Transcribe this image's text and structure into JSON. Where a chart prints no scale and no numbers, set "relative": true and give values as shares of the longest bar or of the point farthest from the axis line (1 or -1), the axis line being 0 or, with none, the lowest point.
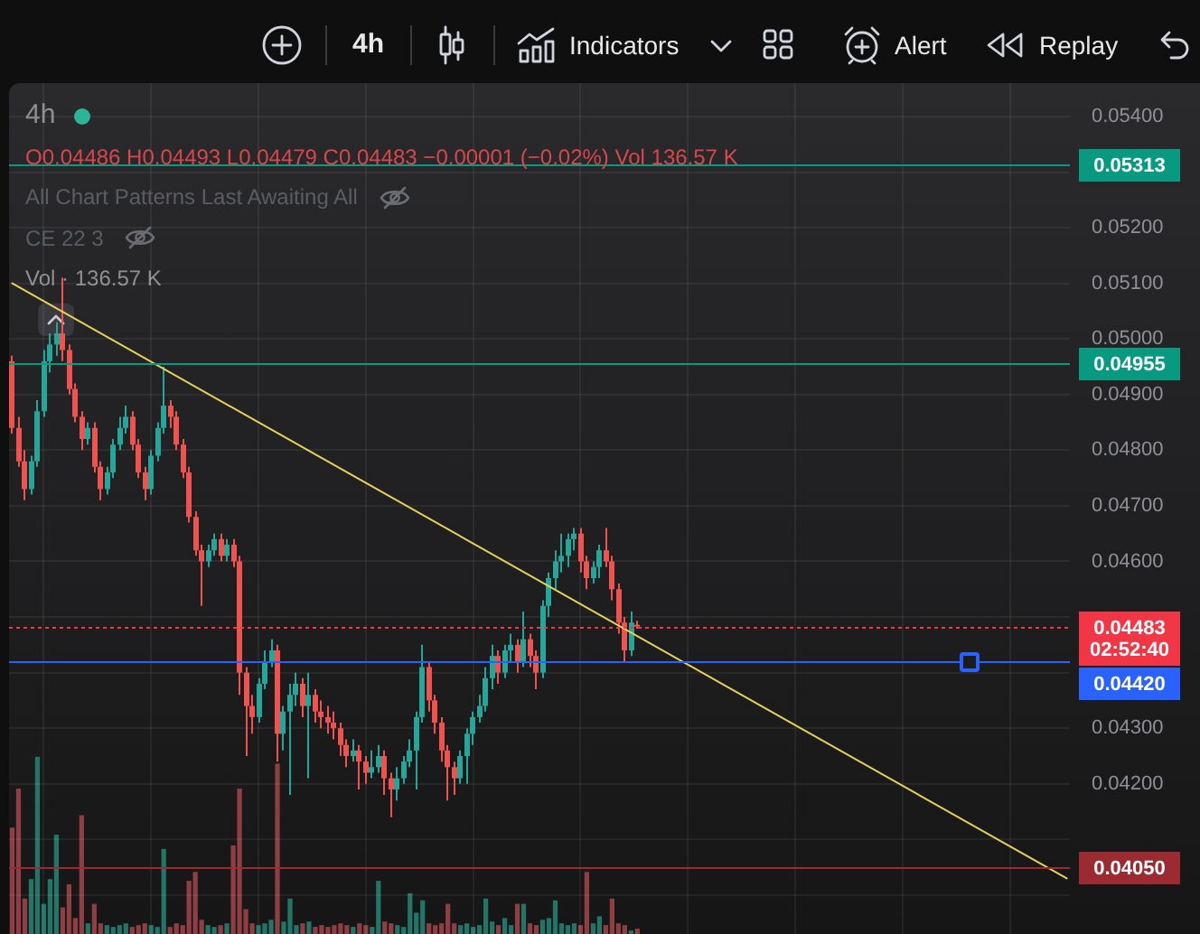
{
  "chart_data": [
    {
      "type": "other",
      "annotations": [
        "4h",
        "Indicators",
        "Alert",
        "Replay"
      ]
    },
    {
      "type": "candlestick",
      "title": "4h",
      "subtitle": "O0.04486 H0.04493 L0.04479 C0.04483 −0.00001 (−0.02%) Vol 136.57 K",
      "annotations": [
        "All Chart Patterns Last Awaiting All",
        "CE 22 3"
      ],
      "categories": [
        null,
        null,
        null,
        null,
        null,
        null,
        null,
        null,
        null,
        null,
        null,
        null,
        null,
        null,
        null,
        null,
        null,
        null,
        null,
        null,
        null,
        null,
        null,
        null,
        null,
        null,
        null,
        null,
        null,
        null,
        null,
        null,
        null,
        null,
        null,
        null,
        null,
        null,
        null,
        null,
        null,
        null,
        null,
        null,
        null,
        null,
        null,
        null,
        null,
        null,
        null,
        null,
        null,
        null,
        null,
        null,
        null,
        null,
        null,
        null,
        null,
        null,
        null,
        null,
        null,
        null,
        null,
        null,
        null,
        null,
        null,
        null,
        null,
        null,
        null,
        null,
        null,
        null,
        null,
        null,
        null,
        null,
        null,
        null,
        null,
        null,
        null,
        null,
        null,
        null,
        null,
        null,
        null,
        null,
        null,
        null,
        null,
        null,
        null,
        null,
        null,
        null,
        null,
        null,
        null,
        null,
        null,
        null,
        null,
        null,
        null,
        null,
        null,
        null,
        null,
        null,
        null,
        null,
        null,
        null,
        null,
        null,
        null,
        null,
        null,
        null,
        null,
        null,
        null,
        null,
        null,
        null,
        null,
        null,
        null,
        null,
        null,
        null,
        null,
        null,
        null,
        null,
        null,
        null,
        null,
        null,
        null,
        null,
        null,
        null,
        null,
        null,
        null,
        null,
        null,
        null,
        null,
        null,
        null,
        null,
        null,
        null,
        null,
        null,
        null,
        null,
        null,
        null
      ],
      "series": [
        {
          "type": "candlestick",
          "ohlc": [
            [
              0.0496,
              0.0497,
              0.0483,
              0.0484
            ],
            [
              0.0484,
              0.0486,
              0.0477,
              0.0478
            ],
            [
              0.0478,
              0.048,
              0.0471,
              0.0473
            ],
            [
              0.0473,
              0.0479,
              0.0472,
              0.0478
            ],
            [
              0.0478,
              0.0489,
              0.0477,
              0.0487
            ],
            [
              0.0487,
              0.0498,
              0.0486,
              0.0496
            ],
            [
              0.0496,
              0.0501,
              0.0494,
              0.0499
            ],
            [
              0.0499,
              0.0503,
              0.0497,
              0.0501
            ],
            [
              0.0501,
              0.0511,
              0.0496,
              0.0498
            ],
            [
              0.0498,
              0.0499,
              0.049,
              0.0491
            ],
            [
              0.0491,
              0.0492,
              0.0485,
              0.0486
            ],
            [
              0.0486,
              0.0487,
              0.048,
              0.0482
            ],
            [
              0.0482,
              0.0485,
              0.0481,
              0.0484
            ],
            [
              0.0484,
              0.0485,
              0.0476,
              0.0477
            ],
            [
              0.0477,
              0.0478,
              0.0471,
              0.0473
            ],
            [
              0.0473,
              0.0477,
              0.0472,
              0.0476
            ],
            [
              0.0476,
              0.0482,
              0.0475,
              0.0481
            ],
            [
              0.0481,
              0.0486,
              0.048,
              0.0484
            ],
            [
              0.0484,
              0.0488,
              0.0483,
              0.0486
            ],
            [
              0.0486,
              0.0487,
              0.048,
              0.0481
            ],
            [
              0.0481,
              0.0482,
              0.0475,
              0.0476
            ],
            [
              0.0476,
              0.0477,
              0.0471,
              0.0473
            ],
            [
              0.0473,
              0.048,
              0.0472,
              0.0479
            ],
            [
              0.0479,
              0.0485,
              0.0478,
              0.0484
            ],
            [
              0.0484,
              0.0495,
              0.0483,
              0.0488
            ],
            [
              0.0488,
              0.0489,
              0.0484,
              0.0486
            ],
            [
              0.0486,
              0.0487,
              0.048,
              0.0481
            ],
            [
              0.0481,
              0.0482,
              0.0475,
              0.0476
            ],
            [
              0.0476,
              0.0477,
              0.0467,
              0.0468
            ],
            [
              0.0468,
              0.0469,
              0.0461,
              0.0462
            ],
            [
              0.0462,
              0.0463,
              0.0452,
              0.046
            ],
            [
              0.046,
              0.0463,
              0.0459,
              0.0462
            ],
            [
              0.0462,
              0.0465,
              0.0461,
              0.0464
            ],
            [
              0.0464,
              0.0465,
              0.046,
              0.0461
            ],
            [
              0.0461,
              0.0464,
              0.046,
              0.0463
            ],
            [
              0.0463,
              0.0464,
              0.0459,
              0.046
            ],
            [
              0.046,
              0.0461,
              0.0436,
              0.044
            ],
            [
              0.044,
              0.0441,
              0.0425,
              0.0434
            ],
            [
              0.0434,
              0.0436,
              0.0429,
              0.0432
            ],
            [
              0.0432,
              0.0439,
              0.0431,
              0.0438
            ],
            [
              0.0438,
              0.0444,
              0.0437,
              0.0442
            ],
            [
              0.0442,
              0.0446,
              0.0441,
              0.0444
            ],
            [
              0.0444,
              0.0445,
              0.0424,
              0.0429
            ],
            [
              0.0429,
              0.0434,
              0.0426,
              0.0433
            ],
            [
              0.0433,
              0.0438,
              0.0418,
              0.0436
            ],
            [
              0.0436,
              0.044,
              0.0434,
              0.0438
            ],
            [
              0.0438,
              0.0439,
              0.0432,
              0.0434
            ],
            [
              0.0434,
              0.044,
              0.0421,
              0.0436
            ],
            [
              0.0436,
              0.0437,
              0.0431,
              0.0433
            ],
            [
              0.0433,
              0.0435,
              0.043,
              0.0432
            ],
            [
              0.0432,
              0.0434,
              0.0429,
              0.0431
            ],
            [
              0.0431,
              0.0433,
              0.0428,
              0.043
            ],
            [
              0.043,
              0.0431,
              0.0425,
              0.0427
            ],
            [
              0.0427,
              0.0428,
              0.0423,
              0.0425
            ],
            [
              0.0425,
              0.0428,
              0.0424,
              0.0426
            ],
            [
              0.0426,
              0.0427,
              0.0419,
              0.0424
            ],
            [
              0.0424,
              0.0425,
              0.042,
              0.0422
            ],
            [
              0.0422,
              0.0426,
              0.0421,
              0.0423
            ],
            [
              0.0423,
              0.0427,
              0.0422,
              0.0425
            ],
            [
              0.0425,
              0.0426,
              0.0418,
              0.0421
            ],
            [
              0.0421,
              0.0422,
              0.0414,
              0.0419
            ],
            [
              0.0419,
              0.0423,
              0.0417,
              0.0421
            ],
            [
              0.0421,
              0.0425,
              0.042,
              0.0424
            ],
            [
              0.0424,
              0.0428,
              0.0423,
              0.0426
            ],
            [
              0.0426,
              0.0433,
              0.0419,
              0.0432
            ],
            [
              0.0432,
              0.0445,
              0.0431,
              0.0441
            ],
            [
              0.0441,
              0.0442,
              0.0433,
              0.0435
            ],
            [
              0.0435,
              0.0436,
              0.0429,
              0.0431
            ],
            [
              0.0431,
              0.0432,
              0.0424,
              0.0426
            ],
            [
              0.0426,
              0.0427,
              0.0417,
              0.0423
            ],
            [
              0.0423,
              0.0424,
              0.0418,
              0.0421
            ],
            [
              0.0421,
              0.0426,
              0.042,
              0.0425
            ],
            [
              0.0425,
              0.043,
              0.042,
              0.0429
            ],
            [
              0.0429,
              0.0433,
              0.0427,
              0.0432
            ],
            [
              0.0432,
              0.0436,
              0.0431,
              0.0434
            ],
            [
              0.0434,
              0.0441,
              0.0433,
              0.0439
            ],
            [
              0.0439,
              0.0445,
              0.0437,
              0.0443
            ],
            [
              0.0443,
              0.0444,
              0.0438,
              0.044
            ],
            [
              0.044,
              0.0445,
              0.0439,
              0.0444
            ],
            [
              0.0444,
              0.0447,
              0.0442,
              0.0445
            ],
            [
              0.0445,
              0.0446,
              0.044,
              0.0442
            ],
            [
              0.0442,
              0.0451,
              0.0441,
              0.0446
            ],
            [
              0.0446,
              0.0447,
              0.0441,
              0.0443
            ],
            [
              0.0443,
              0.0444,
              0.0437,
              0.044
            ],
            [
              0.044,
              0.0453,
              0.0439,
              0.0452
            ],
            [
              0.0452,
              0.0458,
              0.045,
              0.0457
            ],
            [
              0.0457,
              0.0462,
              0.0455,
              0.046
            ],
            [
              0.046,
              0.0465,
              0.0458,
              0.0461
            ],
            [
              0.0461,
              0.0465,
              0.0459,
              0.0464
            ],
            [
              0.0464,
              0.0466,
              0.0462,
              0.0465
            ],
            [
              0.0465,
              0.0466,
              0.0458,
              0.046
            ],
            [
              0.046,
              0.0461,
              0.0455,
              0.0457
            ],
            [
              0.0457,
              0.046,
              0.0456,
              0.0459
            ],
            [
              0.0459,
              0.0463,
              0.0457,
              0.0462
            ],
            [
              0.0462,
              0.0466,
              0.0459,
              0.046
            ],
            [
              0.046,
              0.0461,
              0.0453,
              0.0455
            ],
            [
              0.0455,
              0.0456,
              0.0447,
              0.0449
            ],
            [
              0.0449,
              0.045,
              0.0442,
              0.0444
            ],
            [
              0.0444,
              0.0451,
              0.0443,
              0.0449
            ],
            [
              0.04486,
              0.04493,
              0.04479,
              0.04483
            ],
            null,
            null,
            null,
            null,
            null,
            null,
            null,
            null,
            null,
            null,
            null,
            null,
            null,
            null,
            null,
            null,
            null,
            null,
            null,
            null,
            null,
            null,
            null,
            null,
            null,
            null,
            null,
            null,
            null,
            null,
            null,
            null,
            null,
            null,
            null,
            null,
            null,
            null,
            null,
            null,
            null,
            null,
            null,
            null,
            null,
            null,
            null,
            null,
            null,
            null,
            null,
            null,
            null,
            null,
            null,
            null,
            null,
            null,
            null,
            null,
            null,
            null,
            null,
            null,
            null,
            null,
            null,
            null
          ],
          "colors": [
            "#ef5350",
            "#ef5350",
            "#ef5350",
            "#26a69a",
            "#26a69a",
            "#26a69a",
            "#26a69a",
            "#26a69a",
            "#ef5350",
            "#ef5350",
            "#ef5350",
            "#ef5350",
            "#26a69a",
            "#ef5350",
            "#ef5350",
            "#26a69a",
            "#26a69a",
            "#26a69a",
            "#26a69a",
            "#ef5350",
            "#ef5350",
            "#ef5350",
            "#26a69a",
            "#26a69a",
            "#26a69a",
            "#ef5350",
            "#ef5350",
            "#ef5350",
            "#ef5350",
            "#ef5350",
            "#ef5350",
            "#26a69a",
            "#26a69a",
            "#ef5350",
            "#26a69a",
            "#ef5350",
            "#ef5350",
            "#ef5350",
            "#ef5350",
            "#26a69a",
            "#26a69a",
            "#26a69a",
            "#ef5350",
            "#26a69a",
            "#26a69a",
            "#26a69a",
            "#ef5350",
            "#26a69a",
            "#ef5350",
            "#ef5350",
            "#ef5350",
            "#ef5350",
            "#ef5350",
            "#ef5350",
            "#26a69a",
            "#ef5350",
            "#ef5350",
            "#26a69a",
            "#26a69a",
            "#ef5350",
            "#ef5350",
            "#26a69a",
            "#26a69a",
            "#26a69a",
            "#26a69a",
            "#26a69a",
            "#ef5350",
            "#ef5350",
            "#ef5350",
            "#ef5350",
            "#ef5350",
            "#26a69a",
            "#26a69a",
            "#26a69a",
            "#26a69a",
            "#26a69a",
            "#26a69a",
            "#ef5350",
            "#26a69a",
            "#26a69a",
            "#ef5350",
            "#26a69a",
            "#ef5350",
            "#ef5350",
            "#26a69a",
            "#26a69a",
            "#26a69a",
            "#26a69a",
            "#26a69a",
            "#26a69a",
            "#ef5350",
            "#ef5350",
            "#26a69a",
            "#26a69a",
            "#ef5350",
            "#ef5350",
            "#ef5350",
            "#ef5350",
            "#26a69a",
            "#ef5350",
            null,
            null,
            null,
            null,
            null,
            null,
            null,
            null,
            null,
            null,
            null,
            null,
            null,
            null,
            null,
            null,
            null,
            null,
            null,
            null,
            null,
            null,
            null,
            null,
            null,
            null,
            null,
            null,
            null,
            null,
            null,
            null,
            null,
            null,
            null,
            null,
            null,
            null,
            null,
            null,
            null,
            null,
            null,
            null,
            null,
            null,
            null,
            null,
            null,
            null,
            null,
            null,
            null,
            null,
            null,
            null,
            null,
            null,
            null,
            null,
            null,
            null,
            null,
            null,
            null,
            null,
            null,
            null
          ]
        },
        {
          "type": "line",
          "color": "#e6d35a",
          "values": [
            0.051,
            null,
            null,
            null,
            null,
            null,
            null,
            null,
            null,
            null,
            null,
            null,
            null,
            null,
            null,
            null,
            null,
            null,
            null,
            null,
            null,
            null,
            null,
            null,
            null,
            null,
            null,
            null,
            null,
            null,
            null,
            null,
            null,
            null,
            null,
            null,
            null,
            null,
            null,
            null,
            null,
            null,
            null,
            null,
            null,
            null,
            null,
            null,
            null,
            null,
            null,
            null,
            null,
            null,
            null,
            null,
            null,
            null,
            null,
            null,
            null,
            null,
            null,
            null,
            null,
            null,
            null,
            null,
            null,
            null,
            null,
            null,
            null,
            null,
            null,
            null,
            null,
            null,
            null,
            null,
            null,
            null,
            null,
            null,
            null,
            null,
            null,
            null,
            null,
            null,
            null,
            null,
            null,
            null,
            null,
            null,
            null,
            null,
            null,
            null,
            null,
            null,
            null,
            null,
            null,
            null,
            null,
            null,
            null,
            null,
            null,
            null,
            null,
            null,
            null,
            null,
            null,
            null,
            null,
            null,
            null,
            null,
            null,
            null,
            null,
            null,
            null,
            null,
            null,
            null,
            null,
            null,
            null,
            null,
            null,
            null,
            null,
            null,
            null,
            null,
            null,
            null,
            null,
            null,
            null,
            null,
            null,
            null,
            null,
            null,
            null,
            null,
            null,
            null,
            null,
            null,
            null,
            null,
            null,
            null,
            null,
            null,
            null,
            null,
            null,
            null,
            null,
            0.0403
          ]
        }
      ],
      "ylim": [
        0.0393,
        0.0546
      ],
      "yticks": [
        {
          "value": 0.04,
          "label": null
        },
        {
          "value": 0.041,
          "label": null
        },
        {
          "value": 0.042,
          "label": "0.04200"
        },
        {
          "value": 0.043,
          "label": "0.04300"
        },
        {
          "value": 0.044,
          "label": null
        },
        {
          "value": 0.045,
          "label": null
        },
        {
          "value": 0.046,
          "label": "0.04600"
        },
        {
          "value": 0.047,
          "label": "0.04700"
        },
        {
          "value": 0.048,
          "label": "0.04800"
        },
        {
          "value": 0.049,
          "label": "0.04900"
        },
        {
          "value": 0.05,
          "label": "0.05000"
        },
        {
          "value": 0.051,
          "label": "0.05100"
        },
        {
          "value": 0.052,
          "label": "0.05200"
        },
        {
          "value": 0.053,
          "label": null
        },
        {
          "value": 0.054,
          "label": "0.05400"
        }
      ],
      "ref_lines": [
        {
          "axis": "y",
          "value": 0.05313,
          "label": "0.05313",
          "color": "#089981"
        },
        {
          "axis": "y",
          "value": 0.04955,
          "label": "0.04955",
          "color": "#089981"
        },
        {
          "axis": "y",
          "value": 0.04483,
          "label": "0.04483\n02:52:40",
          "color": "#f23645",
          "line_style": "dotted"
        },
        {
          "axis": "y",
          "value": 0.0442,
          "label": "0.04420",
          "color": "#2962ff"
        },
        {
          "axis": "y",
          "value": 0.0405,
          "label": "0.04050",
          "color": "#9c2a31"
        }
      ],
      "grid": true,
      "tick_labels": "y"
    },
    {
      "type": "bar",
      "title": "Vol · 136.57 K",
      "relative": true,
      "tick_labels": false,
      "categories": [
        null,
        null,
        null,
        null,
        null,
        null,
        null,
        null,
        null,
        null,
        null,
        null,
        null,
        null,
        null,
        null,
        null,
        null,
        null,
        null,
        null,
        null,
        null,
        null,
        null,
        null,
        null,
        null,
        null,
        null,
        null,
        null,
        null,
        null,
        null,
        null,
        null,
        null,
        null,
        null,
        null,
        null,
        null,
        null,
        null,
        null,
        null,
        null,
        null,
        null,
        null,
        null,
        null,
        null,
        null,
        null,
        null,
        null,
        null,
        null,
        null,
        null,
        null,
        null,
        null,
        null,
        null,
        null,
        null,
        null,
        null,
        null,
        null,
        null,
        null,
        null,
        null,
        null,
        null,
        null,
        null,
        null,
        null,
        null,
        null,
        null,
        null,
        null,
        null,
        null,
        null,
        null,
        null,
        null,
        null,
        null,
        null,
        null,
        null,
        null,
        null,
        null,
        null,
        null,
        null,
        null,
        null,
        null,
        null,
        null,
        null,
        null,
        null,
        null,
        null,
        null,
        null,
        null,
        null,
        null,
        null,
        null,
        null,
        null,
        null,
        null,
        null,
        null,
        null,
        null,
        null,
        null,
        null,
        null,
        null,
        null,
        null,
        null,
        null,
        null,
        null,
        null,
        null,
        null,
        null,
        null,
        null,
        null,
        null,
        null,
        null,
        null,
        null,
        null,
        null,
        null,
        null,
        null,
        null,
        null,
        null,
        null,
        null,
        null,
        null,
        null,
        null,
        null
      ],
      "values": [
        0.6,
        0.82,
        0.2,
        0.31,
        1,
        0.17,
        0.31,
        0.56,
        0.15,
        0.28,
        0.09,
        0.67,
        0.06,
        0.17,
        0.06,
        0.05,
        0.04,
        0.05,
        0.06,
        0.04,
        0.05,
        0.06,
        0.05,
        0.04,
        0.48,
        0.04,
        0.06,
        0.05,
        0.3,
        0.35,
        0.08,
        0.05,
        0.04,
        0.05,
        0.06,
        0.5,
        0.82,
        0.14,
        0.06,
        0.05,
        0.06,
        0.08,
        0.96,
        0.07,
        0.2,
        0.05,
        0.06,
        0.07,
        0.04,
        0.05,
        0.04,
        0.05,
        0.06,
        0.05,
        0.04,
        0.06,
        0.05,
        0.04,
        0.3,
        0.07,
        0.06,
        0.05,
        0.04,
        0.23,
        0.12,
        0.19,
        0.06,
        0.05,
        0.06,
        0.17,
        0.06,
        0.05,
        0.06,
        0.04,
        0.05,
        0.2,
        0.07,
        0.05,
        0.09,
        0.05,
        0.17,
        0.17,
        0.06,
        0.05,
        0.08,
        0.09,
        0.19,
        0.06,
        0.05,
        0.06,
        0.05,
        0.35,
        0.06,
        0.1,
        0.05,
        0.2,
        0.06,
        0.05,
        0.02,
        0.03,
        null,
        null,
        null,
        null,
        null,
        null,
        null,
        null,
        null,
        null,
        null,
        null,
        null,
        null,
        null,
        null,
        null,
        null,
        null,
        null,
        null,
        null,
        null,
        null,
        null,
        null,
        null,
        null,
        null,
        null,
        null,
        null,
        null,
        null,
        null,
        null,
        null,
        null,
        null,
        null,
        null,
        null,
        null,
        null,
        null,
        null,
        null,
        null,
        null,
        null,
        null,
        null,
        null,
        null,
        null,
        null,
        null,
        null,
        null,
        null,
        null,
        null,
        null,
        null,
        null,
        null,
        null,
        null
      ],
      "colors": [
        "#8f3f44",
        "#8f3f44",
        "#8f3f44",
        "#237568",
        "#237568",
        "#237568",
        "#237568",
        "#237568",
        "#8f3f44",
        "#8f3f44",
        "#8f3f44",
        "#8f3f44",
        "#237568",
        "#8f3f44",
        "#8f3f44",
        "#237568",
        "#237568",
        "#237568",
        "#237568",
        "#8f3f44",
        "#8f3f44",
        "#8f3f44",
        "#237568",
        "#237568",
        "#237568",
        "#8f3f44",
        "#8f3f44",
        "#8f3f44",
        "#8f3f44",
        "#8f3f44",
        "#8f3f44",
        "#237568",
        "#237568",
        "#8f3f44",
        "#237568",
        "#8f3f44",
        "#8f3f44",
        "#8f3f44",
        "#8f3f44",
        "#237568",
        "#237568",
        "#237568",
        "#8f3f44",
        "#237568",
        "#237568",
        "#237568",
        "#8f3f44",
        "#237568",
        "#8f3f44",
        "#8f3f44",
        "#8f3f44",
        "#8f3f44",
        "#8f3f44",
        "#8f3f44",
        "#237568",
        "#8f3f44",
        "#8f3f44",
        "#237568",
        "#237568",
        "#8f3f44",
        "#8f3f44",
        "#237568",
        "#237568",
        "#237568",
        "#237568",
        "#237568",
        "#8f3f44",
        "#8f3f44",
        "#8f3f44",
        "#8f3f44",
        "#8f3f44",
        "#237568",
        "#237568",
        "#237568",
        "#237568",
        "#237568",
        "#237568",
        "#8f3f44",
        "#237568",
        "#237568",
        "#8f3f44",
        "#237568",
        "#8f3f44",
        "#8f3f44",
        "#237568",
        "#237568",
        "#237568",
        "#237568",
        "#237568",
        "#237568",
        "#8f3f44",
        "#8f3f44",
        "#237568",
        "#237568",
        "#8f3f44",
        "#8f3f44",
        "#8f3f44",
        "#8f3f44",
        "#237568",
        "#8f3f44",
        null,
        null,
        null,
        null,
        null,
        null,
        null,
        null,
        null,
        null,
        null,
        null,
        null,
        null,
        null,
        null,
        null,
        null,
        null,
        null,
        null,
        null,
        null,
        null,
        null,
        null,
        null,
        null,
        null,
        null,
        null,
        null,
        null,
        null,
        null,
        null,
        null,
        null,
        null,
        null,
        null,
        null,
        null,
        null,
        null,
        null,
        null,
        null,
        null,
        null,
        null,
        null,
        null,
        null,
        null,
        null,
        null,
        null,
        null,
        null,
        null,
        null,
        null,
        null,
        null,
        null,
        null,
        null
      ]
    }
  ]
}
